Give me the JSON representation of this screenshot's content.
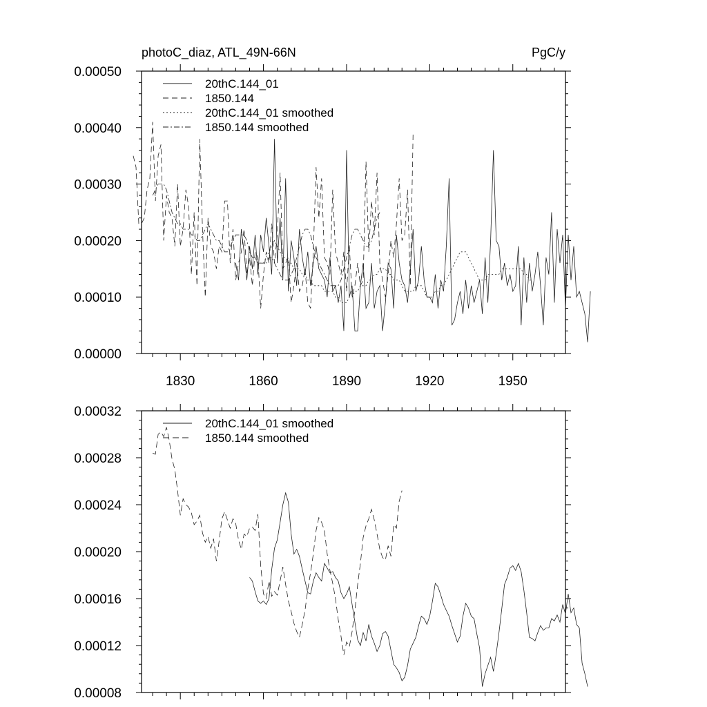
{
  "chart_data": [
    {
      "type": "line",
      "title": "photoC_diaz, ATL_49N-66N",
      "units": "PgC/y",
      "xlim": [
        1816,
        1969
      ],
      "ylim": [
        0,
        0.0005
      ],
      "x_ticks": [
        "1830",
        "1860",
        "1890",
        "1920",
        "1950"
      ],
      "y_ticks": [
        "0.00000",
        "0.00010",
        "0.00020",
        "0.00030",
        "0.00040",
        "0.00050"
      ],
      "legend_position": "top-left",
      "series": [
        {
          "name": "20thC.144_01",
          "dash": "none",
          "x_start": 1850,
          "values": [
            0.00016,
            0.00013,
            0.00022,
            0.00018,
            0.00013,
            0.00019,
            0.00015,
            0.00021,
            0.00014,
            0.00021,
            0.00018,
            0.00024,
            0.00019,
            0.00014,
            0.00038,
            0.00016,
            0.00024,
            0.00013,
            0.00031,
            0.00011,
            0.0002,
            0.00017,
            0.00012,
            0.00022,
            0.00017,
            0.00014,
            0.00018,
            0.00012,
            0.00016,
            0.00019,
            0.00015,
            0.00014,
            0.00013,
            0.0001,
            0.00017,
            0.00011,
            0.00012,
            9e-05,
            0.00012,
            4e-05,
            0.00036,
            0.0001,
            0.00012,
            4e-05,
            4e-05,
            0.00012,
            0.00016,
            8e-05,
            9e-05,
            0.00016,
            8e-05,
            0.00011,
            0.00012,
            4e-05,
            9e-05,
            0.00016,
            0.00015,
            8e-05,
            0.00021,
            0.00016,
            0.00013,
            0.00012,
            9e-05,
            0.00015,
            0.00022,
            0.00011,
            0.00013,
            0.00019,
            0.00013,
            0.0001,
            0.0001,
            9e-05,
            0.00014,
            8e-05,
            0.00013,
            0.00011,
            0.00019,
            0.00031,
            5e-05,
            6e-05,
            9e-05,
            0.00011,
            7e-05,
            0.00013,
            8e-05,
            0.00012,
            9e-05,
            0.00011,
            0.00013,
            7e-05,
            0.00017,
            9e-05,
            0.0002,
            0.00036,
            0.0002,
            0.00019,
            0.00013,
            0.00016,
            0.00012,
            0.00014,
            0.00011,
            0.00012,
            0.00019,
            5e-05,
            0.00017,
            9e-05,
            0.00016,
            0.00011,
            0.00014,
            0.00018,
            0.00012,
            5e-05,
            0.00017,
            0.00014,
            0.00025,
            9e-05,
            0.00022,
            0.00016,
            0.00021,
            8e-05,
            0.00021,
            0.00013,
            0.00019,
            0.0001,
            0.00011,
            9e-05,
            7e-05,
            2e-05,
            0.00011
          ]
        },
        {
          "name": "1850.144",
          "dash": "8,5",
          "x_start": 1813,
          "values": [
            0.00035,
            0.00033,
            0.00023,
            0.00023,
            0.00024,
            0.00029,
            0.00031,
            0.00041,
            0.00027,
            0.00035,
            0.00037,
            0.0002,
            0.00028,
            0.00025,
            0.00024,
            0.00019,
            0.0003,
            0.00019,
            0.00022,
            0.00029,
            0.00026,
            0.00014,
            0.00025,
            0.00012,
            0.00038,
            0.00022,
            0.0001,
            0.00024,
            0.00019,
            0.00018,
            0.00015,
            0.00019,
            0.00018,
            0.00027,
            0.00027,
            0.00016,
            0.00022,
            0.00013,
            0.00016,
            0.00018,
            0.00022,
            0.00014,
            0.00017,
            0.00012,
            0.00018,
            0.00017,
            8e-05,
            0.00014,
            0.00018,
            0.00016,
            0.00023,
            0.00016,
            0.00021,
            0.00032,
            0.00015,
            0.00016,
            0.00017,
            9e-05,
            0.00012,
            0.00016,
            0.00011,
            0.00012,
            0.00015,
            9e-05,
            8e-05,
            0.00018,
            0.00033,
            0.00024,
            0.00031,
            0.00017,
            0.00016,
            0.00014,
            0.00029,
            0.00018,
            0.00016,
            0.00014,
            0.00018,
            0.00011,
            0.00019,
            0.0001,
            0.00012,
            0.00016,
            0.00012,
            0.00013,
            0.00034,
            0.00018,
            0.00027,
            0.00021,
            0.00032,
            0.00016,
            0.00013,
            0.0001,
            0.00014,
            0.0002,
            0.00017,
            0.00023,
            0.00031,
            0.0002,
            0.00021,
            0.00029,
            0.00012,
            0.00039
          ]
        },
        {
          "name": "20thC.144_01 smoothed",
          "dash": "2,3",
          "x_start": 1855,
          "values": [
            0.00018,
            0.00017,
            0.00017,
            0.00016,
            0.00016,
            0.00016,
            0.00017,
            0.00018,
            0.00019,
            0.0002,
            0.00019,
            0.00018,
            0.00017,
            0.00017,
            0.00016,
            0.00016,
            0.00015,
            0.00015,
            0.00015,
            0.00014,
            0.00014,
            0.00013,
            0.00013,
            0.00012,
            0.00012,
            0.00012,
            0.00012,
            0.00011,
            0.00011,
            0.00011,
            0.00011,
            0.0001,
            0.0001,
            9e-05,
            9e-05,
            9e-05,
            0.0001,
            0.0001,
            0.00011,
            0.00011,
            0.00012,
            0.00012,
            0.00012,
            0.00013,
            0.00013,
            0.00014,
            0.00014,
            0.00015,
            0.00015,
            0.00015,
            0.00014,
            0.00014,
            0.00013,
            0.00013,
            0.00013,
            0.00012,
            0.00011,
            0.00011,
            0.00011,
            0.00011,
            0.00012,
            0.00012,
            0.00012,
            0.00011,
            0.0001,
            0.0001,
            0.0001,
            0.00011,
            0.00011,
            0.00012,
            0.00012,
            0.00013,
            0.00014,
            0.00015,
            0.00016,
            0.00017,
            0.00018,
            0.00018,
            0.00018,
            0.00017,
            0.00016,
            0.00015,
            0.00014,
            0.00013,
            0.00013,
            0.00013,
            0.00014,
            0.00014,
            0.00014,
            0.00014,
            0.00014,
            0.00015,
            0.00015,
            0.00015,
            0.00015,
            0.00015,
            0.00015,
            0.00015,
            0.00015,
            0.00014,
            0.00014,
            0.00013,
            0.00013
          ]
        },
        {
          "name": "1850.144 smoothed",
          "dash": "8,3,2,3",
          "x_start": 1820,
          "values": [
            0.00028,
            0.00029,
            0.0003,
            0.0003,
            0.0003,
            0.00029,
            0.00027,
            0.00025,
            0.00024,
            0.00023,
            0.00023,
            0.00022,
            0.00022,
            0.00022,
            0.00021,
            0.00021,
            0.0002,
            0.0002,
            0.00021,
            0.00022,
            0.00023,
            0.00022,
            0.00021,
            0.0002,
            0.0002,
            0.00019,
            0.00018,
            0.00018,
            0.00019,
            0.0002,
            0.00021,
            0.00021,
            0.00021,
            0.00021,
            0.0002,
            0.00018,
            0.00017,
            0.00017,
            0.00016,
            0.00016,
            0.00016,
            0.00016,
            0.00017,
            0.00017,
            0.00016,
            0.00015,
            0.00014,
            0.00013,
            0.00013,
            0.00013,
            0.00014,
            0.00015,
            0.00017,
            0.00019,
            0.00021,
            0.00022,
            0.00022,
            0.00021,
            0.00019,
            0.00017,
            0.00016,
            0.00015,
            0.00014,
            0.00013,
            0.00012,
            0.00012,
            0.00012,
            0.00012,
            0.00013,
            0.00015,
            0.00017,
            0.00019,
            0.00021,
            0.00022,
            0.00022,
            0.00021,
            0.0002,
            0.00019,
            0.00019,
            0.0002,
            0.00022,
            0.00024,
            0.00025
          ]
        }
      ]
    },
    {
      "type": "line",
      "xlim": [
        1816,
        1969
      ],
      "ylim": [
        8e-05,
        0.00032
      ],
      "y_ticks": [
        "0.00008",
        "0.00012",
        "0.00016",
        "0.00020",
        "0.00024",
        "0.00028",
        "0.00032"
      ],
      "legend_position": "top-left",
      "series": [
        {
          "name": "20thC.144_01 smoothed",
          "dash": "none",
          "x_start": 1855,
          "values": [
            0.000178,
            0.000175,
            0.000166,
            0.000158,
            0.000156,
            0.000158,
            0.000155,
            0.00016,
            0.000185,
            0.000203,
            0.00021,
            0.000225,
            0.00024,
            0.00025,
            0.000242,
            0.000215,
            0.000198,
            0.000202,
            0.000196,
            0.000185,
            0.000175,
            0.000165,
            0.000164,
            0.000175,
            0.000182,
            0.000178,
            0.000175,
            0.00019,
            0.000186,
            0.000182,
            0.000183,
            0.000178,
            0.000175,
            0.000165,
            0.00016,
            0.000164,
            0.00017,
            0.000155,
            0.00014,
            0.000125,
            0.00012,
            0.000131,
            0.000124,
            0.000138,
            0.000128,
            0.000122,
            0.000115,
            0.00012,
            0.00013,
            0.000132,
            0.000128,
            0.000116,
            0.000104,
            0.000101,
            9.7e-05,
            9e-05,
            9.3e-05,
            0.000103,
            0.000117,
            0.000122,
            0.000127,
            0.000137,
            0.000145,
            0.000143,
            0.000138,
            0.000145,
            0.000158,
            0.000173,
            0.00017,
            0.000163,
            0.000155,
            0.00015,
            0.000145,
            0.000137,
            0.00013,
            0.000123,
            0.000128,
            0.000145,
            0.000156,
            0.000152,
            0.000145,
            0.000143,
            0.00013,
            0.000118,
            8.5e-05,
            9.6e-05,
            0.000103,
            0.00011,
            9.8e-05,
            0.000113,
            0.000131,
            0.000151,
            0.000172,
            0.000178,
            0.000186,
            0.000188,
            0.000184,
            0.00019,
            0.000183,
            0.000167,
            0.000148,
            0.000127,
            0.000126,
            0.000124,
            0.000131,
            0.000137,
            0.000133,
            0.000135,
            0.000135,
            0.000143,
            0.000141,
            0.000146,
            0.00014,
            0.000155,
            0.000147,
            0.000164,
            0.000148,
            0.000152,
            0.000138,
            0.000135,
            0.000105,
            9.6e-05,
            8.5e-05
          ]
        },
        {
          "name": "1850.144 smoothed",
          "dash": "9,5",
          "x_start": 1820,
          "values": [
            0.000284,
            0.000283,
            0.0003,
            0.000302,
            0.000298,
            0.000306,
            0.000295,
            0.000279,
            0.00027,
            0.000252,
            0.000231,
            0.000245,
            0.00024,
            0.000238,
            0.000233,
            0.000223,
            0.000226,
            0.000231,
            0.000216,
            0.000208,
            0.000213,
            0.000203,
            0.000211,
            0.000192,
            0.000209,
            0.000228,
            0.000234,
            0.000227,
            0.00022,
            0.000228,
            0.000224,
            0.00021,
            0.000202,
            0.000215,
            0.000213,
            0.00022,
            0.000221,
            0.000218,
            0.000232,
            0.000188,
            0.000164,
            0.00016,
            0.000175,
            0.000162,
            0.000166,
            0.000163,
            0.000175,
            0.000187,
            0.000172,
            0.000158,
            0.000149,
            0.000139,
            0.000132,
            0.000127,
            0.000138,
            0.00015,
            0.000168,
            0.000182,
            0.000198,
            0.000218,
            0.000229,
            0.000225,
            0.000218,
            0.000198,
            0.000184,
            0.000173,
            0.00016,
            0.000142,
            0.000128,
            0.000112,
            0.000123,
            0.000119,
            0.000132,
            0.00015,
            0.000172,
            0.00019,
            0.000212,
            0.000222,
            0.000228,
            0.000236,
            0.000227,
            0.000215,
            0.000202,
            0.000195,
            0.000193,
            0.000205,
            0.000196,
            0.000223,
            0.00022,
            0.000243,
            0.000252
          ]
        }
      ]
    }
  ]
}
